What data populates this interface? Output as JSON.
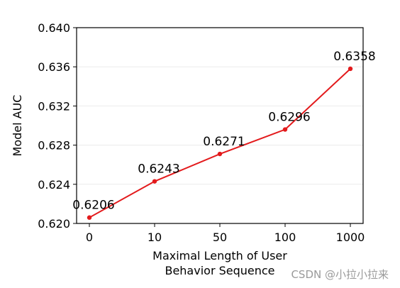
{
  "chart_data": {
    "type": "line",
    "categories": [
      "0",
      "10",
      "50",
      "100",
      "1000"
    ],
    "series": [
      {
        "values": [
          0.6206,
          0.6243,
          0.6271,
          0.6296,
          0.6358
        ],
        "color": "#e31a1c"
      }
    ],
    "data_labels": [
      "0.6206",
      "0.6243",
      "0.6271",
      "0.6296",
      "0.6358"
    ],
    "ylabel": "Model AUC",
    "xlabel_lines": [
      "Maximal Length of User",
      "Behavior Sequence"
    ],
    "ylim": [
      0.62,
      0.64
    ],
    "yticks": [
      0.62,
      0.624,
      0.628,
      0.632,
      0.636,
      0.64
    ],
    "ytick_labels": [
      "0.620",
      "0.624",
      "0.628",
      "0.632",
      "0.636",
      "0.640"
    ],
    "grid": "horizontal"
  },
  "watermark": "CSDN @小拉小拉来"
}
